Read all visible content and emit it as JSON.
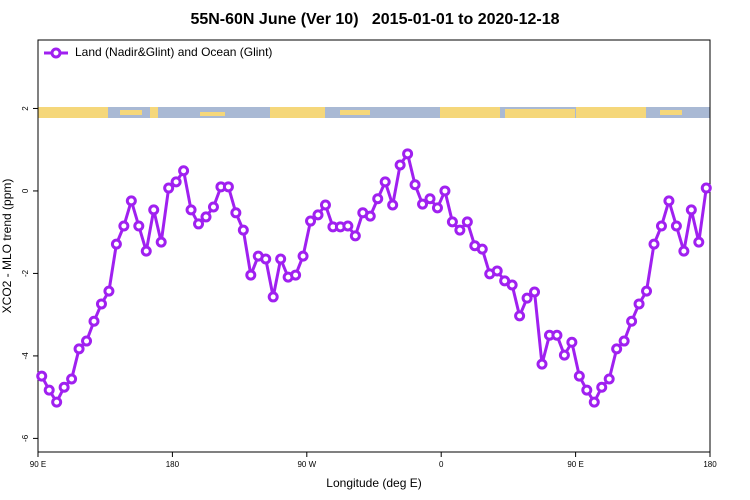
{
  "chart_data": {
    "type": "line",
    "title": "55N-60N June (Ver 10)   2015-01-01 to 2020-12-18",
    "x_label": "Longitude (deg E)",
    "y_label": "XCO2 - MLO trend (ppm)",
    "x": [
      92.5,
      97.5,
      102.5,
      107.5,
      112.5,
      117.5,
      122.5,
      127.5,
      132.5,
      137.5,
      142.5,
      147.5,
      152.5,
      157.5,
      162.5,
      167.5,
      172.5,
      177.5,
      182.5,
      187.5,
      192.5,
      197.5,
      202.5,
      207.5,
      212.5,
      217.5,
      222.5,
      227.5,
      232.5,
      237.5,
      242.5,
      247.5,
      252.5,
      257.5,
      262.5,
      267.5,
      272.5,
      277.5,
      282.5,
      287.5,
      292.5,
      297.5,
      302.5,
      307.5,
      312.5,
      317.5,
      322.5,
      327.5,
      332.5,
      337.5,
      342.5,
      347.5,
      352.5,
      357.5,
      362.5,
      367.5,
      372.5,
      377.5,
      382.5,
      387.5,
      392.5,
      397.5,
      402.5,
      407.5,
      412.5,
      417.5,
      422.5,
      427.5,
      432.5,
      437.5,
      442.5,
      447.5,
      452.5,
      457.5,
      462.5,
      467.5,
      472.5,
      477.5,
      482.5,
      487.5,
      492.5,
      497.5,
      502.5,
      507.5,
      512.5,
      517.5,
      522.5,
      527.5,
      532.5,
      537.5
    ],
    "series": [
      {
        "name": "Land (Nadir&Glint) and Ocean (Glint)",
        "color": "#a020f0",
        "values": [
          -4.49,
          -4.83,
          -5.12,
          -4.76,
          -4.56,
          -3.83,
          -3.64,
          -3.16,
          -2.74,
          -2.43,
          -1.29,
          -0.85,
          -0.24,
          -0.85,
          -1.46,
          -0.46,
          -1.24,
          0.07,
          0.22,
          0.49,
          -0.46,
          -0.8,
          -0.63,
          -0.39,
          0.1,
          0.1,
          -0.53,
          -0.95,
          -2.04,
          -1.58,
          -1.65,
          -2.57,
          -1.65,
          -2.09,
          -2.04,
          -1.58,
          -0.73,
          -0.58,
          -0.34,
          -0.87,
          -0.87,
          -0.85,
          -1.09,
          -0.53,
          -0.61,
          -0.19,
          0.22,
          -0.34,
          0.63,
          0.9,
          0.15,
          -0.32,
          -0.19,
          -0.41,
          0.0,
          -0.75,
          -0.95,
          -0.75,
          -1.33,
          -1.41,
          -2.01,
          -1.94,
          -2.18,
          -2.28,
          -3.03,
          -2.6,
          -2.45,
          -4.2,
          -3.5,
          -3.5,
          -3.98,
          -3.67,
          -4.49,
          -4.83,
          -5.12,
          -4.76,
          -4.56,
          -3.83,
          -3.64,
          -3.16,
          -2.74,
          -2.43,
          -1.29,
          -0.85,
          -0.24,
          -0.85,
          -1.46,
          -0.46,
          -1.24,
          0.07
        ]
      }
    ],
    "xlim": [
      90,
      540
    ],
    "xticks": [
      {
        "value": 90,
        "label": "90 E"
      },
      180,
      {
        "value": 270,
        "label": "90 W"
      },
      {
        "value": 360,
        "label": "0"
      },
      {
        "value": 450,
        "label": "90 E"
      },
      {
        "value": 540,
        "label": "180"
      }
    ],
    "ylim": [
      -6.33,
      3.66
    ],
    "yticks": [
      -6,
      -4,
      -2,
      0,
      2
    ],
    "legend": "top-left"
  }
}
